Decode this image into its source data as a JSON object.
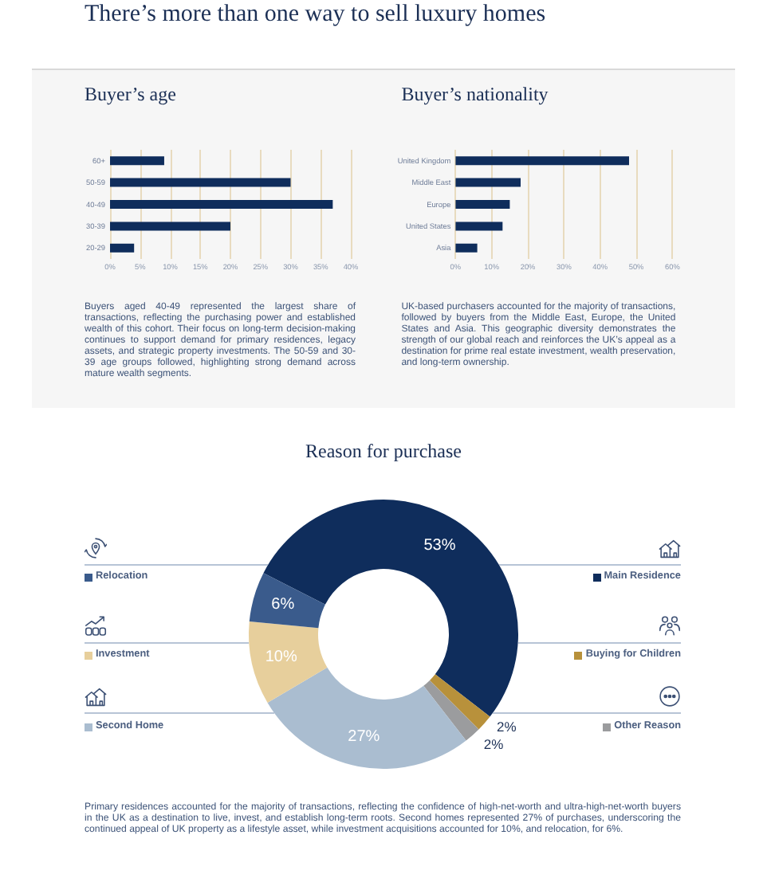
{
  "chart_data": [
    {
      "type": "other",
      "title": "There’s more than one way to sell luxury homes"
    },
    {
      "type": "bar",
      "orientation": "horizontal",
      "title": "Buyer’s age",
      "categories": [
        "60+",
        "50-59",
        "40-49",
        "30-39",
        "20-29"
      ],
      "values": [
        9,
        30,
        37,
        20,
        4
      ],
      "color": "#0f2d5c",
      "xlim": [
        0,
        40
      ],
      "xticks": [
        {
          "value": 0,
          "label": "0%"
        },
        {
          "value": 5,
          "label": "5%"
        },
        {
          "value": 10,
          "label": "10%"
        },
        {
          "value": 15,
          "label": "15%"
        },
        {
          "value": 20,
          "label": "20%"
        },
        {
          "value": 25,
          "label": "25%"
        },
        {
          "value": 30,
          "label": "30%"
        },
        {
          "value": 35,
          "label": "35%"
        },
        {
          "value": 40,
          "label": "40%"
        }
      ],
      "grid": "x",
      "annotations": [
        "Buyers aged 40-49 represented the largest share of transactions, reflecting the purchasing power and established wealth of this cohort. Their focus on long-term decision-making continues to support demand for primary residences, legacy assets, and strategic property investments. The 50-59 and 30-39 age groups followed, highlighting strong demand across mature wealth segments."
      ]
    },
    {
      "type": "bar",
      "orientation": "horizontal",
      "title": "Buyer’s nationality",
      "categories": [
        "United Kingdom",
        "Middle East",
        "Europe",
        "United States",
        "Asia"
      ],
      "values": [
        48,
        18,
        15,
        13,
        6
      ],
      "color": "#0f2d5c",
      "xlim": [
        0,
        60
      ],
      "xticks": [
        {
          "value": 0,
          "label": "0%"
        },
        {
          "value": 10,
          "label": "10%"
        },
        {
          "value": 20,
          "label": "20%"
        },
        {
          "value": 30,
          "label": "30%"
        },
        {
          "value": 40,
          "label": "40%"
        },
        {
          "value": 50,
          "label": "50%"
        },
        {
          "value": 60,
          "label": "60%"
        }
      ],
      "grid": "x",
      "annotations": [
        "UK-based purchasers accounted for the majority of transactions, followed by buyers from the Middle East, Europe, the United States and Asia. This geographic diversity demonstrates the strength of our global reach and reinforces the UK’s appeal as a destination for prime real estate investment, wealth preservation, and long-term ownership."
      ]
    },
    {
      "type": "donut",
      "title": "Reason for purchase",
      "categories": [
        "Main Residence",
        "Buying for Children",
        "Other Reason",
        "Second Home",
        "Investment",
        "Relocation"
      ],
      "values": [
        53,
        2,
        2,
        27,
        10,
        6
      ],
      "colors": [
        "#0f2d5c",
        "#b8913b",
        "#9b9c9e",
        "#aabdd0",
        "#e7cf9c",
        "#3a5b8c"
      ],
      "value_labels": [
        "53%",
        "2%",
        "2%",
        "27%",
        "10%",
        "6%"
      ],
      "legend": "center",
      "annotations": [
        "Primary residences accounted for the majority of transactions, reflecting the confidence of high-net-worth and ultra-high-net-worth buyers in the UK as a destination to live, invest, and establish long-term roots. Second homes represented 27% of purchases, underscoring the continued appeal of UK property as a lifestyle asset, while investment acquisitions accounted for 10%, and relocation, for 6%."
      ]
    }
  ]
}
